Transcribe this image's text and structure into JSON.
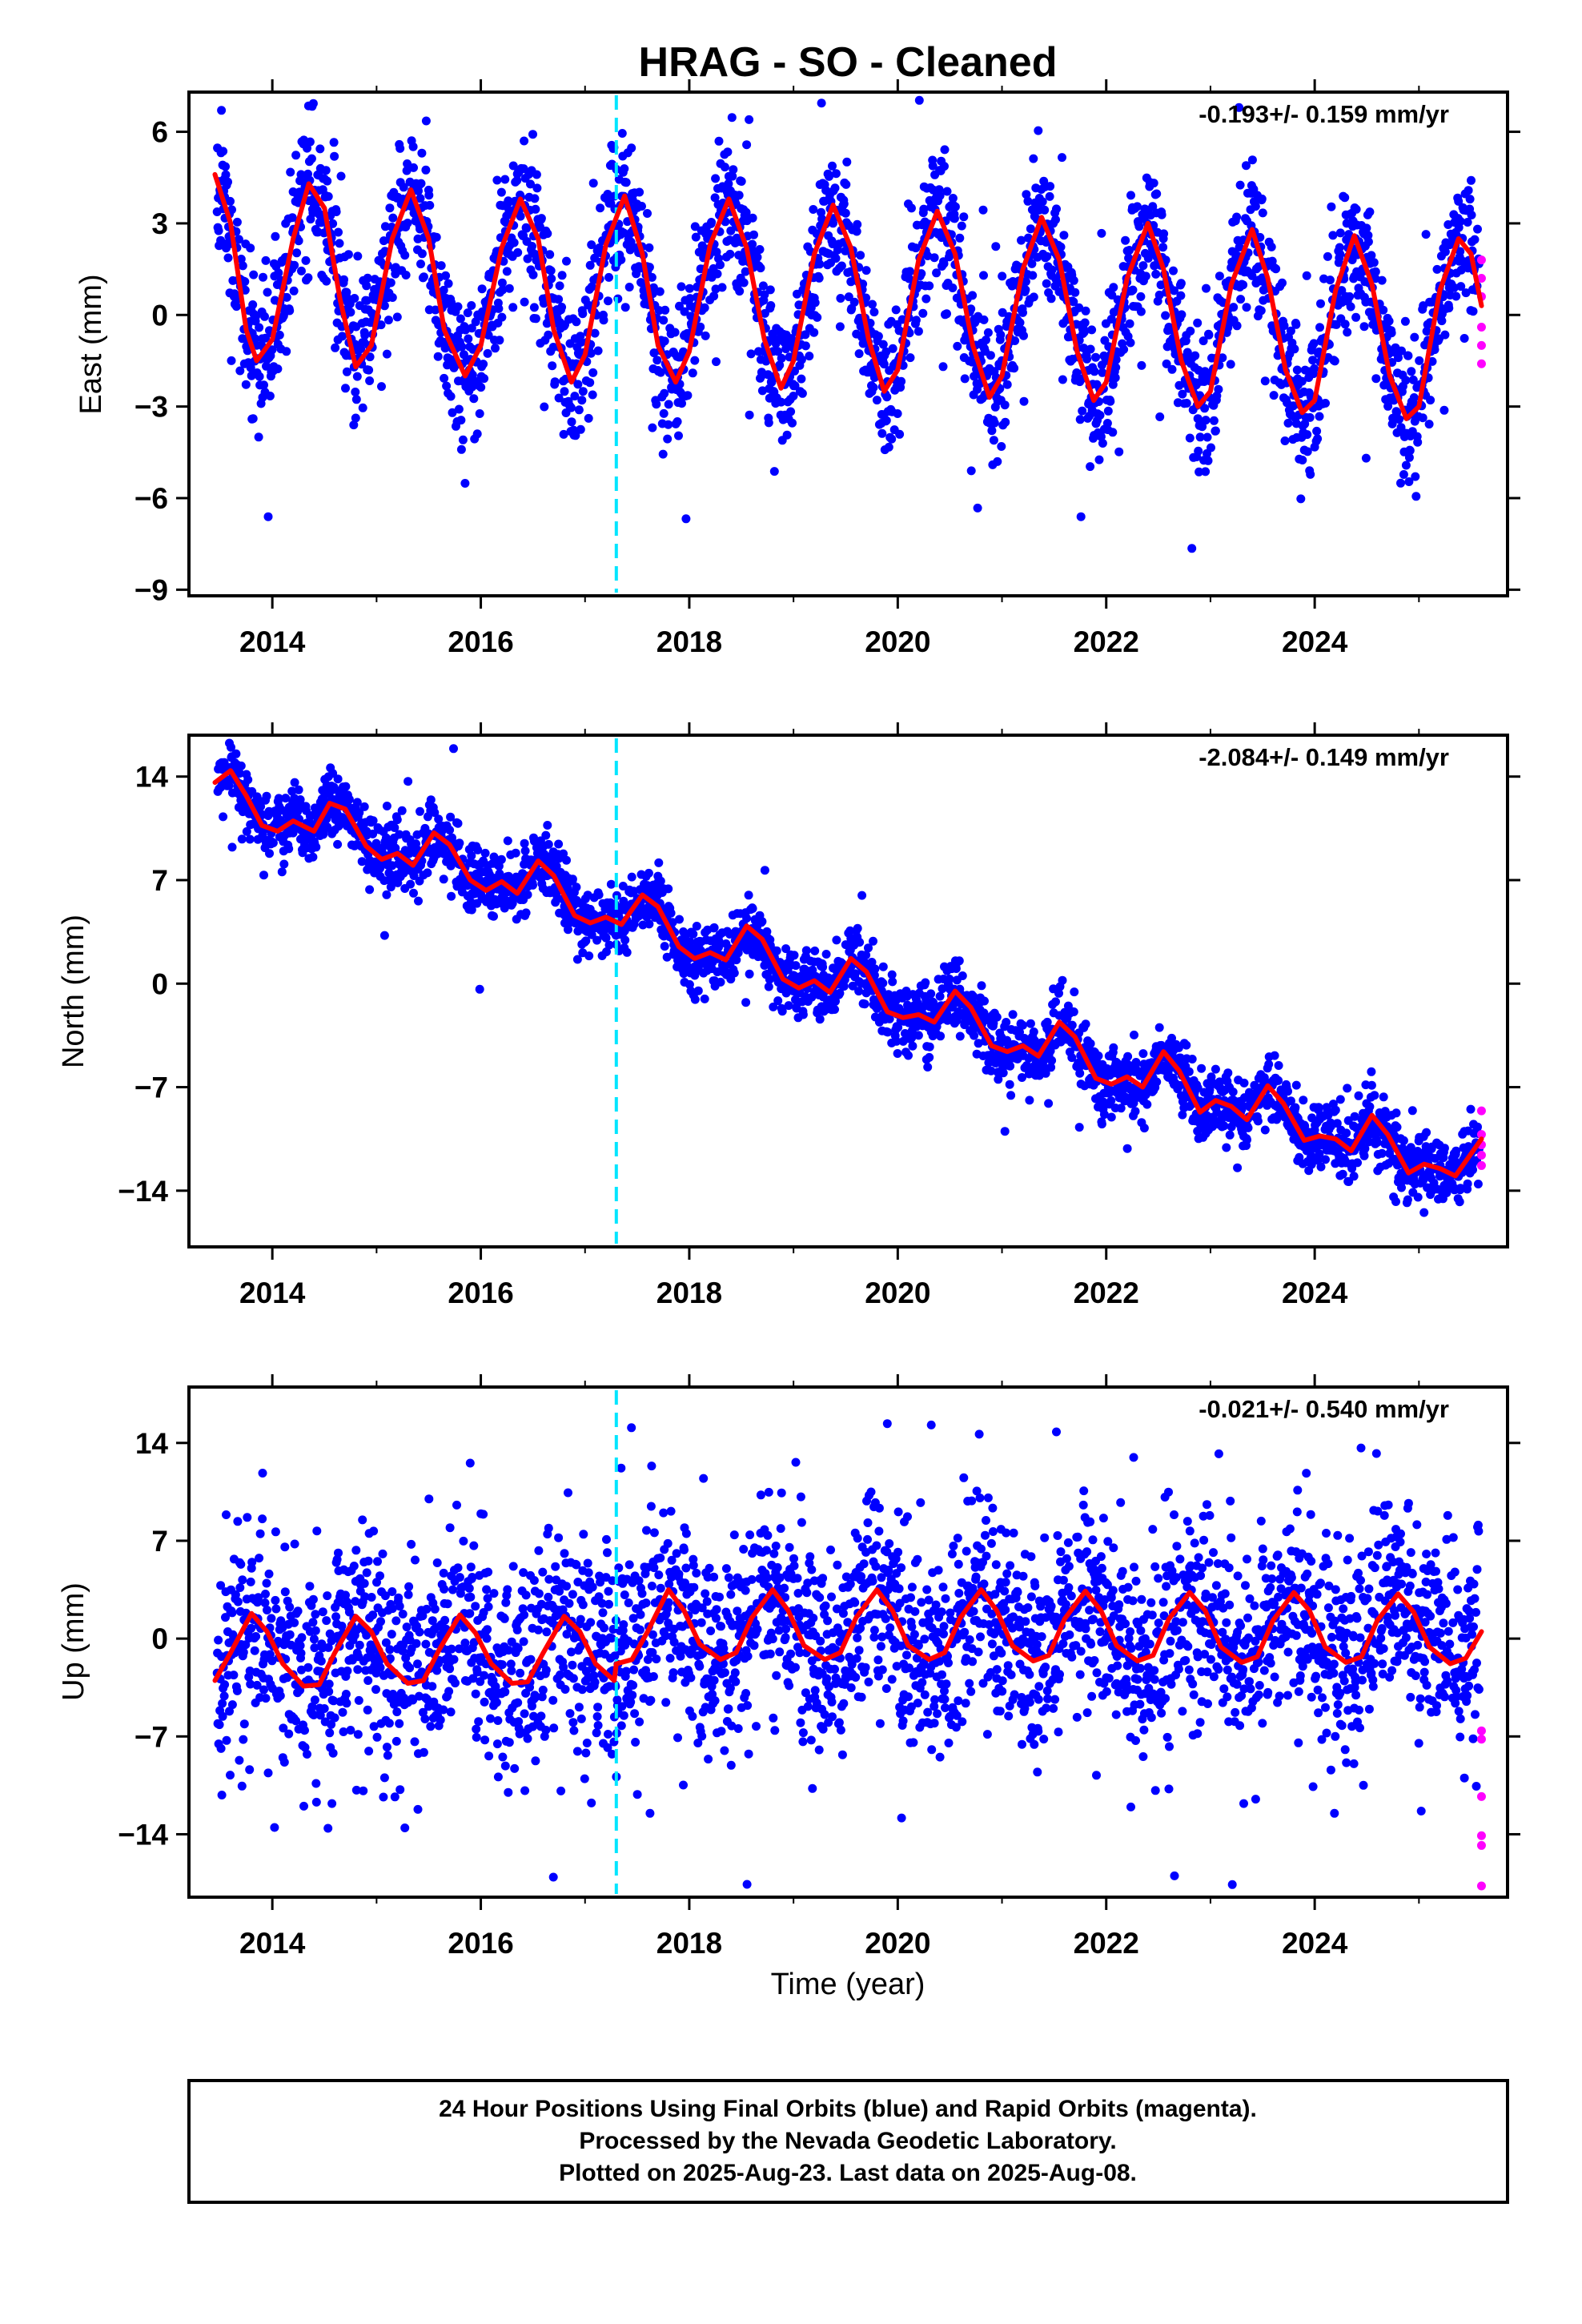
{
  "title": "HRAG  - SO - Cleaned",
  "x_axis_label": "Time (year)",
  "footer": {
    "line1": "24 Hour Positions Using Final Orbits (blue) and Rapid Orbits (magenta).",
    "line2": "Processed by the Nevada Geodetic Laboratory.",
    "line3": "Plotted on 2025-Aug-23. Last data on 2025-Aug-08."
  },
  "colors": {
    "final_orbits": "#0000ff",
    "rapid_orbits": "#ff00ff",
    "model_fit": "#ff0000",
    "equipment_change": "#00e5ff"
  },
  "chart_data": [
    {
      "type": "scatter",
      "ylabel": "East (mm)",
      "annotation": "-0.193+/- 0.159 mm/yr",
      "xlim": [
        2013.2,
        2025.85
      ],
      "ylim": [
        -9.2,
        7.3
      ],
      "xticks": [
        2014,
        2016,
        2018,
        2020,
        2022,
        2024
      ],
      "yticks": [
        6,
        3,
        0,
        -3,
        -6,
        -9
      ],
      "ytick_labels": [
        "6",
        "3",
        "0",
        "−3",
        "−6",
        "−9"
      ],
      "vertical_line_x": 2017.3,
      "fit_points": [
        [
          2013.45,
          4.6
        ],
        [
          2013.6,
          3.0
        ],
        [
          2013.75,
          -0.5
        ],
        [
          2013.85,
          -1.5
        ],
        [
          2014.0,
          -0.8
        ],
        [
          2014.2,
          2.5
        ],
        [
          2014.35,
          4.3
        ],
        [
          2014.5,
          3.5
        ],
        [
          2014.65,
          0.5
        ],
        [
          2014.8,
          -1.7
        ],
        [
          2014.95,
          -1.0
        ],
        [
          2015.15,
          2.5
        ],
        [
          2015.33,
          4.1
        ],
        [
          2015.5,
          2.5
        ],
        [
          2015.65,
          -0.5
        ],
        [
          2015.85,
          -2.0
        ],
        [
          2016.0,
          -1.0
        ],
        [
          2016.2,
          2.2
        ],
        [
          2016.38,
          3.8
        ],
        [
          2016.55,
          2.5
        ],
        [
          2016.7,
          -0.5
        ],
        [
          2016.87,
          -2.2
        ],
        [
          2017.0,
          -1.3
        ],
        [
          2017.2,
          2.3
        ],
        [
          2017.38,
          3.9
        ],
        [
          2017.55,
          2.0
        ],
        [
          2017.7,
          -1.0
        ],
        [
          2017.87,
          -2.2
        ],
        [
          2018.0,
          -1.2
        ],
        [
          2018.2,
          2.3
        ],
        [
          2018.38,
          3.8
        ],
        [
          2018.55,
          2.2
        ],
        [
          2018.72,
          -0.8
        ],
        [
          2018.88,
          -2.4
        ],
        [
          2019.0,
          -1.5
        ],
        [
          2019.2,
          2.0
        ],
        [
          2019.38,
          3.6
        ],
        [
          2019.55,
          2.2
        ],
        [
          2019.72,
          -0.8
        ],
        [
          2019.87,
          -2.5
        ],
        [
          2020.0,
          -1.8
        ],
        [
          2020.2,
          1.8
        ],
        [
          2020.38,
          3.4
        ],
        [
          2020.55,
          2.0
        ],
        [
          2020.72,
          -1.0
        ],
        [
          2020.88,
          -2.7
        ],
        [
          2021.0,
          -2.0
        ],
        [
          2021.2,
          1.5
        ],
        [
          2021.38,
          3.2
        ],
        [
          2021.55,
          1.8
        ],
        [
          2021.72,
          -1.2
        ],
        [
          2021.88,
          -2.8
        ],
        [
          2022.0,
          -2.2
        ],
        [
          2022.2,
          1.2
        ],
        [
          2022.4,
          3.0
        ],
        [
          2022.55,
          1.5
        ],
        [
          2022.72,
          -1.5
        ],
        [
          2022.88,
          -3.0
        ],
        [
          2023.0,
          -2.5
        ],
        [
          2023.2,
          1.0
        ],
        [
          2023.4,
          2.8
        ],
        [
          2023.55,
          1.2
        ],
        [
          2023.72,
          -1.8
        ],
        [
          2023.88,
          -3.2
        ],
        [
          2024.0,
          -2.8
        ],
        [
          2024.2,
          0.8
        ],
        [
          2024.38,
          2.6
        ],
        [
          2024.55,
          1.0
        ],
        [
          2024.72,
          -2.0
        ],
        [
          2024.88,
          -3.4
        ],
        [
          2025.0,
          -3.0
        ],
        [
          2025.2,
          0.8
        ],
        [
          2025.38,
          2.5
        ],
        [
          2025.5,
          2.0
        ],
        [
          2025.6,
          0.3
        ]
      ],
      "scatter_model": {
        "offset": 0.3,
        "trend": -0.193,
        "amp1": 3.3,
        "phase1": 0.12,
        "amp2": 0.5,
        "noise": 1.15,
        "outliers": 0.04,
        "seed": 11
      },
      "rapid_points": [
        [
          2025.6,
          1.8
        ],
        [
          2025.6,
          1.2
        ],
        [
          2025.6,
          -0.4
        ],
        [
          2025.6,
          -1.0
        ],
        [
          2025.6,
          -1.6
        ],
        [
          2025.6,
          0.6
        ]
      ]
    },
    {
      "type": "scatter",
      "ylabel": "North (mm)",
      "annotation": "-2.084+/- 0.149 mm/yr",
      "xlim": [
        2013.2,
        2025.85
      ],
      "ylim": [
        -17.8,
        16.8
      ],
      "xticks": [
        2014,
        2016,
        2018,
        2020,
        2022,
        2024
      ],
      "yticks": [
        14,
        7,
        0,
        -7,
        -14
      ],
      "ytick_labels": [
        "14",
        "7",
        "0",
        "−7",
        "−14"
      ],
      "vertical_line_x": 2017.3,
      "fit_points": [
        [
          2013.45,
          13.6
        ],
        [
          2013.6,
          14.4
        ],
        [
          2013.75,
          12.7
        ],
        [
          2013.9,
          10.7
        ],
        [
          2014.05,
          10.3
        ],
        [
          2014.2,
          11.0
        ],
        [
          2014.4,
          10.3
        ],
        [
          2014.55,
          12.2
        ],
        [
          2014.7,
          11.8
        ],
        [
          2014.9,
          9.3
        ],
        [
          2015.05,
          8.4
        ],
        [
          2015.2,
          8.8
        ],
        [
          2015.35,
          8.0
        ],
        [
          2015.55,
          10.2
        ],
        [
          2015.7,
          9.4
        ],
        [
          2015.9,
          7.0
        ],
        [
          2016.05,
          6.3
        ],
        [
          2016.2,
          6.9
        ],
        [
          2016.35,
          6.1
        ],
        [
          2016.55,
          8.3
        ],
        [
          2016.7,
          7.3
        ],
        [
          2016.9,
          4.6
        ],
        [
          2017.05,
          4.1
        ],
        [
          2017.2,
          4.5
        ],
        [
          2017.35,
          4.0
        ],
        [
          2017.55,
          6.0
        ],
        [
          2017.7,
          5.2
        ],
        [
          2017.9,
          2.5
        ],
        [
          2018.05,
          1.7
        ],
        [
          2018.2,
          2.1
        ],
        [
          2018.35,
          1.6
        ],
        [
          2018.55,
          3.9
        ],
        [
          2018.7,
          3.0
        ],
        [
          2018.9,
          0.3
        ],
        [
          2019.05,
          -0.3
        ],
        [
          2019.2,
          0.2
        ],
        [
          2019.35,
          -0.6
        ],
        [
          2019.55,
          1.7
        ],
        [
          2019.7,
          0.8
        ],
        [
          2019.9,
          -1.9
        ],
        [
          2020.05,
          -2.3
        ],
        [
          2020.2,
          -2.1
        ],
        [
          2020.35,
          -2.6
        ],
        [
          2020.55,
          -0.5
        ],
        [
          2020.7,
          -1.6
        ],
        [
          2020.9,
          -4.2
        ],
        [
          2021.05,
          -4.6
        ],
        [
          2021.2,
          -4.2
        ],
        [
          2021.35,
          -4.9
        ],
        [
          2021.55,
          -2.6
        ],
        [
          2021.7,
          -3.6
        ],
        [
          2021.9,
          -6.4
        ],
        [
          2022.05,
          -6.8
        ],
        [
          2022.2,
          -6.3
        ],
        [
          2022.35,
          -7.0
        ],
        [
          2022.55,
          -4.6
        ],
        [
          2022.7,
          -5.9
        ],
        [
          2022.9,
          -8.7
        ],
        [
          2023.05,
          -7.9
        ],
        [
          2023.2,
          -8.3
        ],
        [
          2023.35,
          -9.2
        ],
        [
          2023.55,
          -6.9
        ],
        [
          2023.7,
          -8.1
        ],
        [
          2023.9,
          -10.6
        ],
        [
          2024.05,
          -10.3
        ],
        [
          2024.2,
          -10.5
        ],
        [
          2024.35,
          -11.3
        ],
        [
          2024.55,
          -8.9
        ],
        [
          2024.7,
          -10.2
        ],
        [
          2024.9,
          -12.8
        ],
        [
          2025.05,
          -12.2
        ],
        [
          2025.2,
          -12.5
        ],
        [
          2025.35,
          -13.0
        ],
        [
          2025.5,
          -11.5
        ],
        [
          2025.6,
          -10.5
        ]
      ],
      "scatter_model": {
        "offset": 0.0,
        "trend": 0.0,
        "amp1": 0.0,
        "phase1": 0.0,
        "amp2": 0.0,
        "noise": 1.1,
        "outliers": 0.02,
        "seed": 23
      },
      "rapid_points": [
        [
          2025.6,
          -8.6
        ],
        [
          2025.6,
          -10.2
        ],
        [
          2025.6,
          -10.9
        ],
        [
          2025.6,
          -11.6
        ],
        [
          2025.6,
          -12.3
        ]
      ]
    },
    {
      "type": "scatter",
      "ylabel": "Up (mm)",
      "annotation": "-0.021+/- 0.540 mm/yr",
      "xlim": [
        2013.2,
        2025.85
      ],
      "ylim": [
        -18.5,
        18.0
      ],
      "xticks": [
        2014,
        2016,
        2018,
        2020,
        2022,
        2024
      ],
      "yticks": [
        14,
        7,
        0,
        -7,
        -14
      ],
      "ytick_labels": [
        "14",
        "7",
        "0",
        "−7",
        "−14"
      ],
      "vertical_line_x": 2017.3,
      "fit_points": [
        [
          2013.45,
          -3.0
        ],
        [
          2013.6,
          -1.0
        ],
        [
          2013.8,
          1.8
        ],
        [
          2013.95,
          0.5
        ],
        [
          2014.1,
          -1.8
        ],
        [
          2014.3,
          -3.4
        ],
        [
          2014.45,
          -3.3
        ],
        [
          2014.6,
          -1.0
        ],
        [
          2014.8,
          1.6
        ],
        [
          2014.95,
          0.5
        ],
        [
          2015.1,
          -1.8
        ],
        [
          2015.3,
          -3.2
        ],
        [
          2015.45,
          -3.0
        ],
        [
          2015.6,
          -0.8
        ],
        [
          2015.8,
          1.7
        ],
        [
          2015.95,
          0.4
        ],
        [
          2016.1,
          -1.8
        ],
        [
          2016.3,
          -3.2
        ],
        [
          2016.45,
          -3.1
        ],
        [
          2016.6,
          -1.0
        ],
        [
          2016.8,
          1.6
        ],
        [
          2016.95,
          0.5
        ],
        [
          2017.1,
          -1.8
        ],
        [
          2017.28,
          -3.0
        ],
        [
          2017.3,
          -1.8
        ],
        [
          2017.45,
          -1.5
        ],
        [
          2017.6,
          0.5
        ],
        [
          2017.8,
          3.5
        ],
        [
          2017.95,
          2.0
        ],
        [
          2018.1,
          -0.4
        ],
        [
          2018.3,
          -1.5
        ],
        [
          2018.45,
          -1.0
        ],
        [
          2018.6,
          1.5
        ],
        [
          2018.8,
          3.5
        ],
        [
          2018.95,
          2.0
        ],
        [
          2019.1,
          -0.5
        ],
        [
          2019.3,
          -1.5
        ],
        [
          2019.45,
          -1.0
        ],
        [
          2019.6,
          1.5
        ],
        [
          2019.8,
          3.5
        ],
        [
          2019.95,
          2.0
        ],
        [
          2020.1,
          -0.5
        ],
        [
          2020.3,
          -1.5
        ],
        [
          2020.45,
          -1.0
        ],
        [
          2020.6,
          1.5
        ],
        [
          2020.8,
          3.5
        ],
        [
          2020.95,
          2.0
        ],
        [
          2021.1,
          -0.5
        ],
        [
          2021.3,
          -1.6
        ],
        [
          2021.45,
          -1.2
        ],
        [
          2021.6,
          1.4
        ],
        [
          2021.8,
          3.4
        ],
        [
          2021.95,
          2.0
        ],
        [
          2022.1,
          -0.5
        ],
        [
          2022.3,
          -1.6
        ],
        [
          2022.45,
          -1.2
        ],
        [
          2022.6,
          1.4
        ],
        [
          2022.8,
          3.3
        ],
        [
          2022.95,
          2.0
        ],
        [
          2023.1,
          -0.6
        ],
        [
          2023.3,
          -1.7
        ],
        [
          2023.45,
          -1.3
        ],
        [
          2023.6,
          1.3
        ],
        [
          2023.8,
          3.3
        ],
        [
          2023.95,
          2.0
        ],
        [
          2024.1,
          -0.6
        ],
        [
          2024.3,
          -1.7
        ],
        [
          2024.45,
          -1.3
        ],
        [
          2024.6,
          1.3
        ],
        [
          2024.8,
          3.2
        ],
        [
          2024.95,
          1.9
        ],
        [
          2025.1,
          -0.6
        ],
        [
          2025.3,
          -1.8
        ],
        [
          2025.45,
          -1.4
        ],
        [
          2025.6,
          0.5
        ]
      ],
      "scatter_model": {
        "offset": 0.0,
        "trend": 0.0,
        "amp1": 0.0,
        "phase1": 0.0,
        "amp2": 0.0,
        "noise": 3.6,
        "outliers": 0.06,
        "seed": 37
      },
      "rapid_points": [
        [
          2025.6,
          -6.6
        ],
        [
          2025.6,
          -7.2
        ],
        [
          2025.6,
          -11.3
        ],
        [
          2025.6,
          -14.1
        ],
        [
          2025.6,
          -14.8
        ],
        [
          2025.6,
          -17.7
        ]
      ]
    }
  ]
}
